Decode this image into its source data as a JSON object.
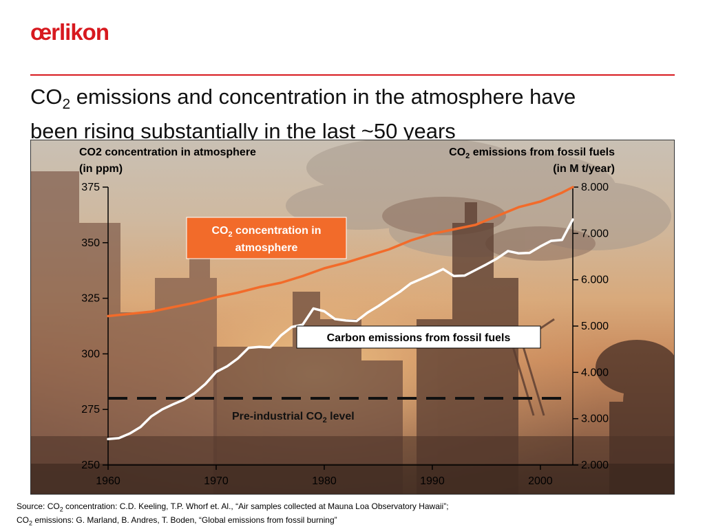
{
  "logo": {
    "text": "œrlikon",
    "color": "#d7191f"
  },
  "headline": {
    "co": "CO",
    "sub": "2",
    "rest": " emissions and concentration in the atmosphere have",
    "line2": "been rising substantially in the last ~50 years"
  },
  "chart_data": {
    "type": "line",
    "left_axis_title": [
      "CO2 concentration in atmosphere",
      "(in ppm)"
    ],
    "right_axis_title_line1": [
      "CO",
      "2",
      " emissions from fossil fuels"
    ],
    "right_axis_title_line2": "(in M t/year)",
    "x_ticks": [
      "1960",
      "1970",
      "1980",
      "1990",
      "2000"
    ],
    "xlim": [
      1960,
      2003
    ],
    "y_left_ticks": [
      "375",
      "350",
      "325",
      "300",
      "275",
      "250"
    ],
    "y_left_lim": [
      250,
      375
    ],
    "y_right_ticks": [
      "8.000",
      "7.000",
      "6.000",
      "5.000",
      "4.000",
      "3.000",
      "2.000"
    ],
    "y_right_lim": [
      2000,
      8000
    ],
    "series": [
      {
        "name_parts": [
          "CO",
          "2",
          " concentration in",
          "atmosphere"
        ],
        "axis": "left",
        "color": "#f26b2a",
        "x": [
          1960,
          1962,
          1964,
          1966,
          1968,
          1970,
          1972,
          1974,
          1976,
          1978,
          1980,
          1982,
          1984,
          1986,
          1988,
          1990,
          1992,
          1994,
          1996,
          1998,
          2000,
          2002,
          2003
        ],
        "y": [
          317,
          318,
          319,
          321,
          323,
          325.5,
          327.5,
          330,
          332,
          335,
          338.5,
          341,
          344,
          347,
          351,
          354,
          356,
          358,
          362,
          366,
          368.5,
          372.5,
          375
        ]
      },
      {
        "name": "Carbon emissions from fossil fuels",
        "axis": "right",
        "color": "#ffffff",
        "x": [
          1960,
          1961,
          1962,
          1963,
          1964,
          1965,
          1966,
          1967,
          1968,
          1969,
          1970,
          1971,
          1972,
          1973,
          1974,
          1975,
          1976,
          1977,
          1978,
          1979,
          1980,
          1981,
          1982,
          1983,
          1984,
          1985,
          1986,
          1987,
          1988,
          1989,
          1990,
          1991,
          1992,
          1993,
          1994,
          1995,
          1996,
          1997,
          1998,
          1999,
          2000,
          2001,
          2002,
          2003
        ],
        "y": [
          2560,
          2580,
          2680,
          2820,
          3050,
          3200,
          3310,
          3410,
          3550,
          3750,
          4010,
          4130,
          4300,
          4530,
          4550,
          4540,
          4800,
          4980,
          5030,
          5380,
          5320,
          5150,
          5120,
          5110,
          5290,
          5430,
          5590,
          5740,
          5920,
          6020,
          6120,
          6230,
          6080,
          6090,
          6210,
          6330,
          6460,
          6620,
          6570,
          6580,
          6720,
          6840,
          6860,
          7300
        ]
      }
    ],
    "reference_line": {
      "label_parts": [
        "Pre-industrial CO",
        "2",
        " level"
      ],
      "value": 280,
      "axis": "left",
      "style": "dashed",
      "color": "#111111"
    },
    "background": "photo of an industrial skyline with smoke stacks at sunset",
    "grid": false
  },
  "source": {
    "line1_prefix": "Source: CO",
    "line1_sub": "2",
    "line1_rest": " concentration: C.D. Keeling, T.P. Whorf et. Al., “Air samples collected at Mauna Loa Observatory Hawaii”;",
    "line2_prefix": "CO",
    "line2_sub": "2",
    "line2_rest": " emissions: G. Marland, B. Andres, T. Boden, “Global emissions from fossil burning”"
  }
}
